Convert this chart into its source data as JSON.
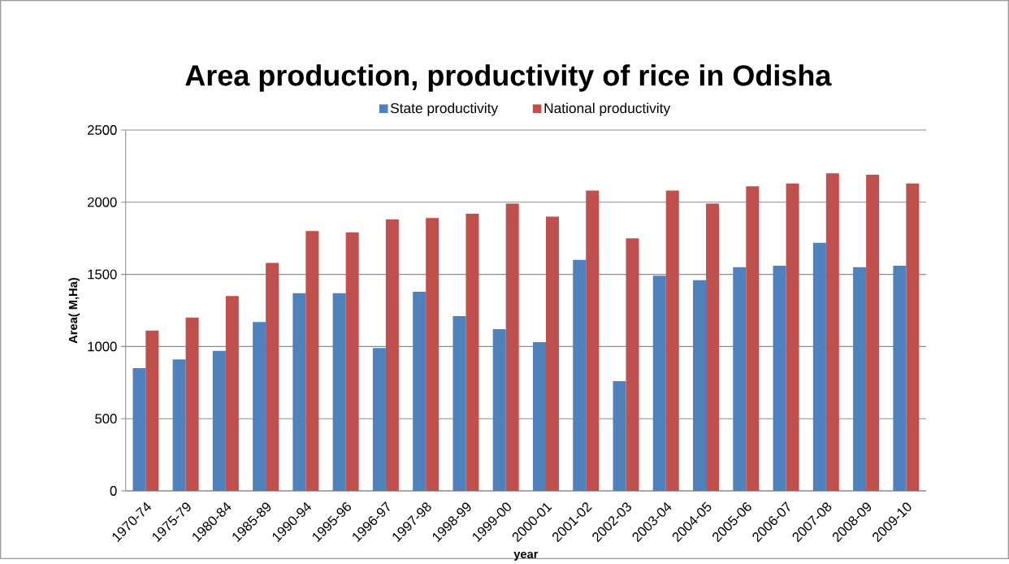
{
  "chart_data": {
    "type": "bar",
    "title": "Area production, productivity of rice in Odisha",
    "xlabel": "year",
    "ylabel": "Area( M,Ha)",
    "categories": [
      "1970-74",
      "1975-79",
      "1980-84",
      "1985-89",
      "1990-94",
      "1995-96",
      "1996-97",
      "1997-98",
      "1998-99",
      "1999-00",
      "2000-01",
      "2001-02",
      "2002-03",
      "2003-04",
      "2004-05",
      "2005-06",
      "2006-07",
      "2007-08",
      "2008-09",
      "2009-10"
    ],
    "series": [
      {
        "name": "State productivity",
        "color": "#4f81bd",
        "values": [
          850,
          910,
          970,
          1170,
          1370,
          1370,
          990,
          1380,
          1210,
          1120,
          1030,
          1600,
          760,
          1490,
          1460,
          1550,
          1560,
          1720,
          1550,
          1560
        ]
      },
      {
        "name": "National productivity",
        "color": "#c0504d",
        "values": [
          1110,
          1200,
          1350,
          1580,
          1800,
          1790,
          1880,
          1890,
          1920,
          1990,
          1900,
          2080,
          1750,
          2080,
          1990,
          2110,
          2130,
          2200,
          2190,
          2130
        ]
      }
    ],
    "ylim": [
      0,
      2500
    ],
    "yticks": [
      0,
      500,
      1000,
      1500,
      2000,
      2500
    ],
    "grid": "y",
    "legend": "top"
  }
}
